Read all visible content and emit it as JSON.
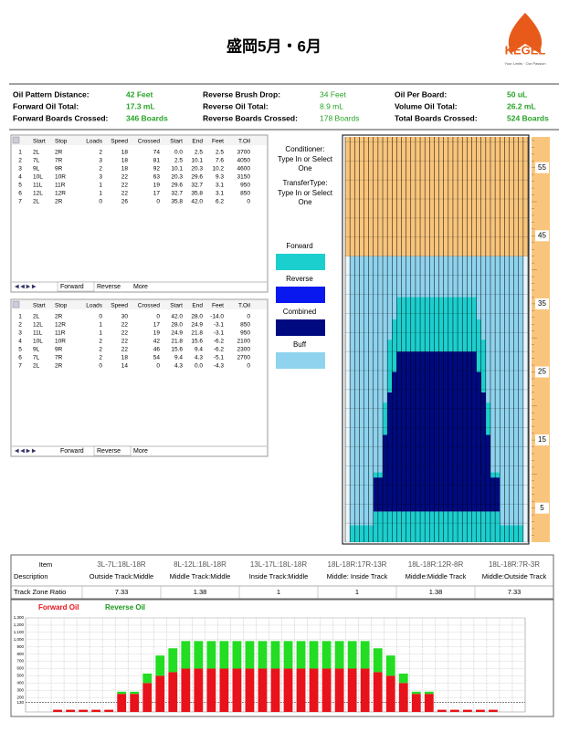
{
  "header": {
    "title": "盛岡5月・6月",
    "logo": "KEGEL",
    "tagline": "Your Limits · Our Passion"
  },
  "summary": [
    {
      "label": "Oil Pattern Distance:",
      "value": "42 Feet"
    },
    {
      "label": "Forward Oil Total:",
      "value": "17.3 mL"
    },
    {
      "label": "Forward Boards Crossed:",
      "value": "346 Boards"
    },
    {
      "label": "Reverse Brush Drop:",
      "value": "34 Feet"
    },
    {
      "label": "Reverse Oil Total:",
      "value": "8.9 mL"
    },
    {
      "label": "Reverse Boards Crossed:",
      "value": "178 Boards"
    },
    {
      "label": "Oil Per Board:",
      "value": "50 uL"
    },
    {
      "label": "Volume Oil Total:",
      "value": "26.2 mL"
    },
    {
      "label": "Total Boards Crossed:",
      "value": "524 Boards"
    }
  ],
  "forward_table": {
    "headers": [
      "Start",
      "Stop",
      "Loads",
      "Speed",
      "Crossed",
      "Start",
      "End",
      "Feet",
      "T.Oil"
    ],
    "rows": [
      [
        "1",
        "2L",
        "2R",
        "2",
        "18",
        "74",
        "0.0",
        "2.5",
        "2.5",
        "3700"
      ],
      [
        "2",
        "7L",
        "7R",
        "3",
        "18",
        "81",
        "2.5",
        "10.1",
        "7.6",
        "4050"
      ],
      [
        "3",
        "9L",
        "9R",
        "2",
        "18",
        "92",
        "10.1",
        "20.3",
        "10.2",
        "4600"
      ],
      [
        "4",
        "10L",
        "10R",
        "3",
        "22",
        "63",
        "20.3",
        "29.6",
        "9.3",
        "3150"
      ],
      [
        "5",
        "11L",
        "11R",
        "1",
        "22",
        "19",
        "29.6",
        "32.7",
        "3.1",
        "950"
      ],
      [
        "6",
        "12L",
        "12R",
        "1",
        "22",
        "17",
        "32.7",
        "35.8",
        "3.1",
        "850"
      ],
      [
        "7",
        "2L",
        "2R",
        "0",
        "26",
        "0",
        "35.8",
        "42.0",
        "6.2",
        "0"
      ]
    ],
    "tabs": [
      "Forward",
      "Reverse",
      "More"
    ]
  },
  "reverse_table": {
    "headers": [
      "Start",
      "Stop",
      "Loads",
      "Speed",
      "Crossed",
      "Start",
      "End",
      "Feet",
      "T.Oil"
    ],
    "rows": [
      [
        "1",
        "2L",
        "2R",
        "0",
        "30",
        "0",
        "42.0",
        "28.0",
        "-14.0",
        "0"
      ],
      [
        "2",
        "12L",
        "12R",
        "1",
        "22",
        "17",
        "28.0",
        "24.9",
        "-3.1",
        "850"
      ],
      [
        "3",
        "11L",
        "11R",
        "1",
        "22",
        "19",
        "24.9",
        "21.8",
        "-3.1",
        "950"
      ],
      [
        "4",
        "10L",
        "10R",
        "2",
        "22",
        "42",
        "21.8",
        "15.6",
        "-6.2",
        "2100"
      ],
      [
        "5",
        "9L",
        "9R",
        "2",
        "22",
        "46",
        "15.6",
        "9.4",
        "-6.2",
        "2300"
      ],
      [
        "6",
        "7L",
        "7R",
        "2",
        "18",
        "54",
        "9.4",
        "4.3",
        "-5.1",
        "2700"
      ],
      [
        "7",
        "2L",
        "2R",
        "0",
        "14",
        "0",
        "4.3",
        "0.0",
        "-4.3",
        "0"
      ]
    ],
    "tabs": [
      "Forward",
      "Reverse",
      "More"
    ]
  },
  "lane_panel": {
    "conditioner_label": "Conditioner:",
    "conditioner_value": "Type In or Select One",
    "transfer_label": "TransferType:",
    "transfer_value": "Type In or Select One",
    "legend": [
      {
        "name": "Forward",
        "color": "#1ccfcf"
      },
      {
        "name": "Reverse",
        "color": "#0a18f0"
      },
      {
        "name": "Combined",
        "color": "#000a80"
      },
      {
        "name": "Buff",
        "color": "#8fd3ee"
      }
    ],
    "ruler": [
      55,
      45,
      35,
      25,
      15,
      5
    ]
  },
  "ratio_table": {
    "row_headers": [
      "Item",
      "Description",
      "Track Zone Ratio"
    ],
    "columns": [
      {
        "item": "3L-7L:18L-18R",
        "description": "Outside Track:Middle",
        "ratio": 7.33
      },
      {
        "item": "8L-12L:18L-18R",
        "description": "Middle Track:Middle",
        "ratio": 1.38
      },
      {
        "item": "13L-17L:18L-18R",
        "description": "Inside Track:Middle",
        "ratio": 1
      },
      {
        "item": "18L-18R:17R-13R",
        "description": "Middle: Inside Track",
        "ratio": 1
      },
      {
        "item": "18L-18R:12R-8R",
        "description": "Middle:Middle Track",
        "ratio": 1.38
      },
      {
        "item": "18L-18R:7R-3R",
        "description": "Middle:Outside Track",
        "ratio": 7.33
      }
    ]
  },
  "chart_data": {
    "type": "bar",
    "stacked": true,
    "series": [
      {
        "name": "Forward Oil",
        "color": "#e8121a",
        "values": [
          0,
          0,
          30,
          30,
          30,
          30,
          30,
          250,
          250,
          400,
          500,
          550,
          600,
          600,
          600,
          600,
          600,
          600,
          600,
          600,
          600,
          600,
          600,
          600,
          600,
          600,
          600,
          550,
          500,
          400,
          250,
          250,
          30,
          30,
          30,
          30,
          30,
          0,
          0
        ]
      },
      {
        "name": "Reverse Oil",
        "color": "#22dd22",
        "values": [
          0,
          0,
          0,
          0,
          0,
          0,
          0,
          30,
          30,
          130,
          280,
          330,
          380,
          380,
          380,
          380,
          380,
          380,
          380,
          380,
          380,
          380,
          380,
          380,
          380,
          380,
          380,
          330,
          280,
          130,
          30,
          30,
          0,
          0,
          0,
          0,
          0,
          0,
          0
        ]
      }
    ],
    "ylim": [
      0,
      1300
    ],
    "yticks": [
      130,
      200,
      300,
      400,
      500,
      600,
      700,
      800,
      900,
      {
        "value": 1000,
        "label": "1,000"
      },
      {
        "value": 1100,
        "label": "1,100"
      },
      {
        "value": 1200,
        "label": "1,200"
      },
      {
        "value": 1300,
        "label": "1,300"
      }
    ],
    "grid": true
  }
}
